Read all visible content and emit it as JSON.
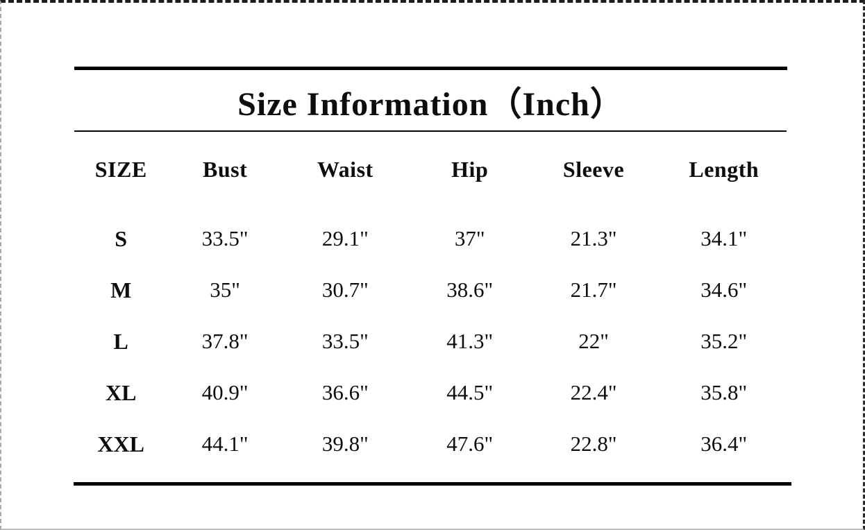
{
  "page": {
    "title": "Size Information（Inch）",
    "unit": "Inch"
  },
  "size_chart": {
    "columns": [
      "SIZE",
      "Bust",
      "Waist",
      "Hip",
      "Sleeve",
      "Length"
    ],
    "rows": [
      {
        "size": "S",
        "cells": [
          "33.5\"",
          "29.1\"",
          "37\"",
          "21.3\"",
          "34.1\""
        ]
      },
      {
        "size": "M",
        "cells": [
          "35\"",
          "30.7\"",
          "38.6\"",
          "21.7\"",
          "34.6\""
        ]
      },
      {
        "size": "L",
        "cells": [
          "37.8\"",
          "33.5\"",
          "41.3\"",
          "22\"",
          "35.2\""
        ]
      },
      {
        "size": "XL",
        "cells": [
          "40.9\"",
          "36.6\"",
          "44.5\"",
          "22.4\"",
          "35.8\""
        ]
      },
      {
        "size": "XXL",
        "cells": [
          "44.1\"",
          "39.8\"",
          "47.6\"",
          "22.8\"",
          "36.4\""
        ]
      }
    ]
  },
  "colors": {
    "text": "#0d0d0d",
    "rule": "#000000",
    "background": "#ffffff",
    "edge_dark": "#1c1c1c",
    "edge_light": "#a8a8a8"
  }
}
